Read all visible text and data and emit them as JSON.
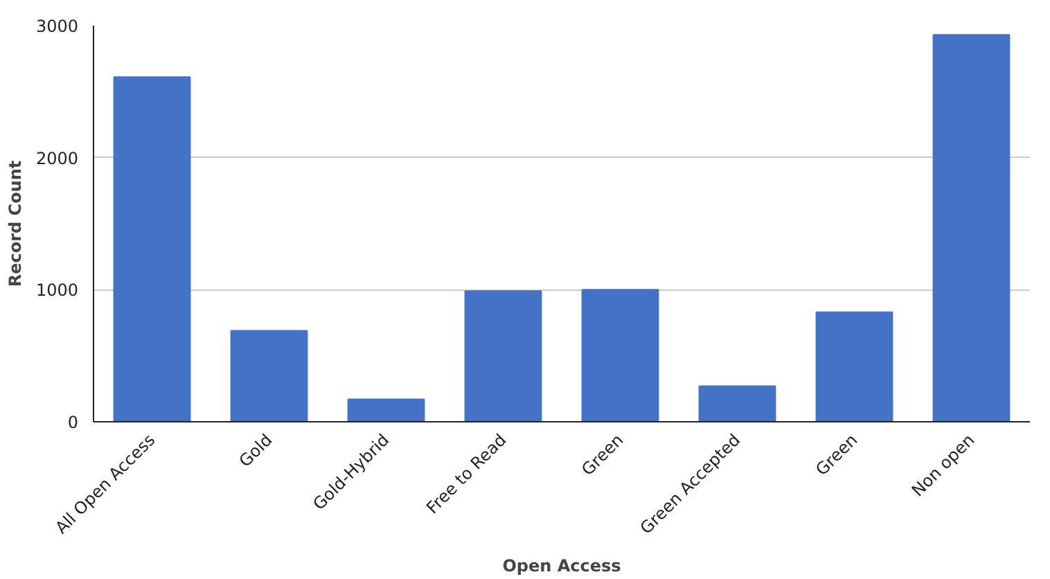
{
  "chart_data": {
    "type": "bar",
    "xlabel": "Open Access",
    "ylabel": "Record Count",
    "categories": [
      "All Open Access",
      "Gold",
      "Gold-Hybrid",
      "Free to Read",
      "Green",
      "Green Accepted",
      "Green",
      "Non open"
    ],
    "values": [
      2610,
      690,
      170,
      990,
      1000,
      270,
      830,
      2930
    ],
    "color": "#4472c4",
    "ylim": [
      0,
      3000
    ],
    "yticks": [
      0,
      1000,
      2000,
      3000
    ],
    "grid": "y"
  }
}
